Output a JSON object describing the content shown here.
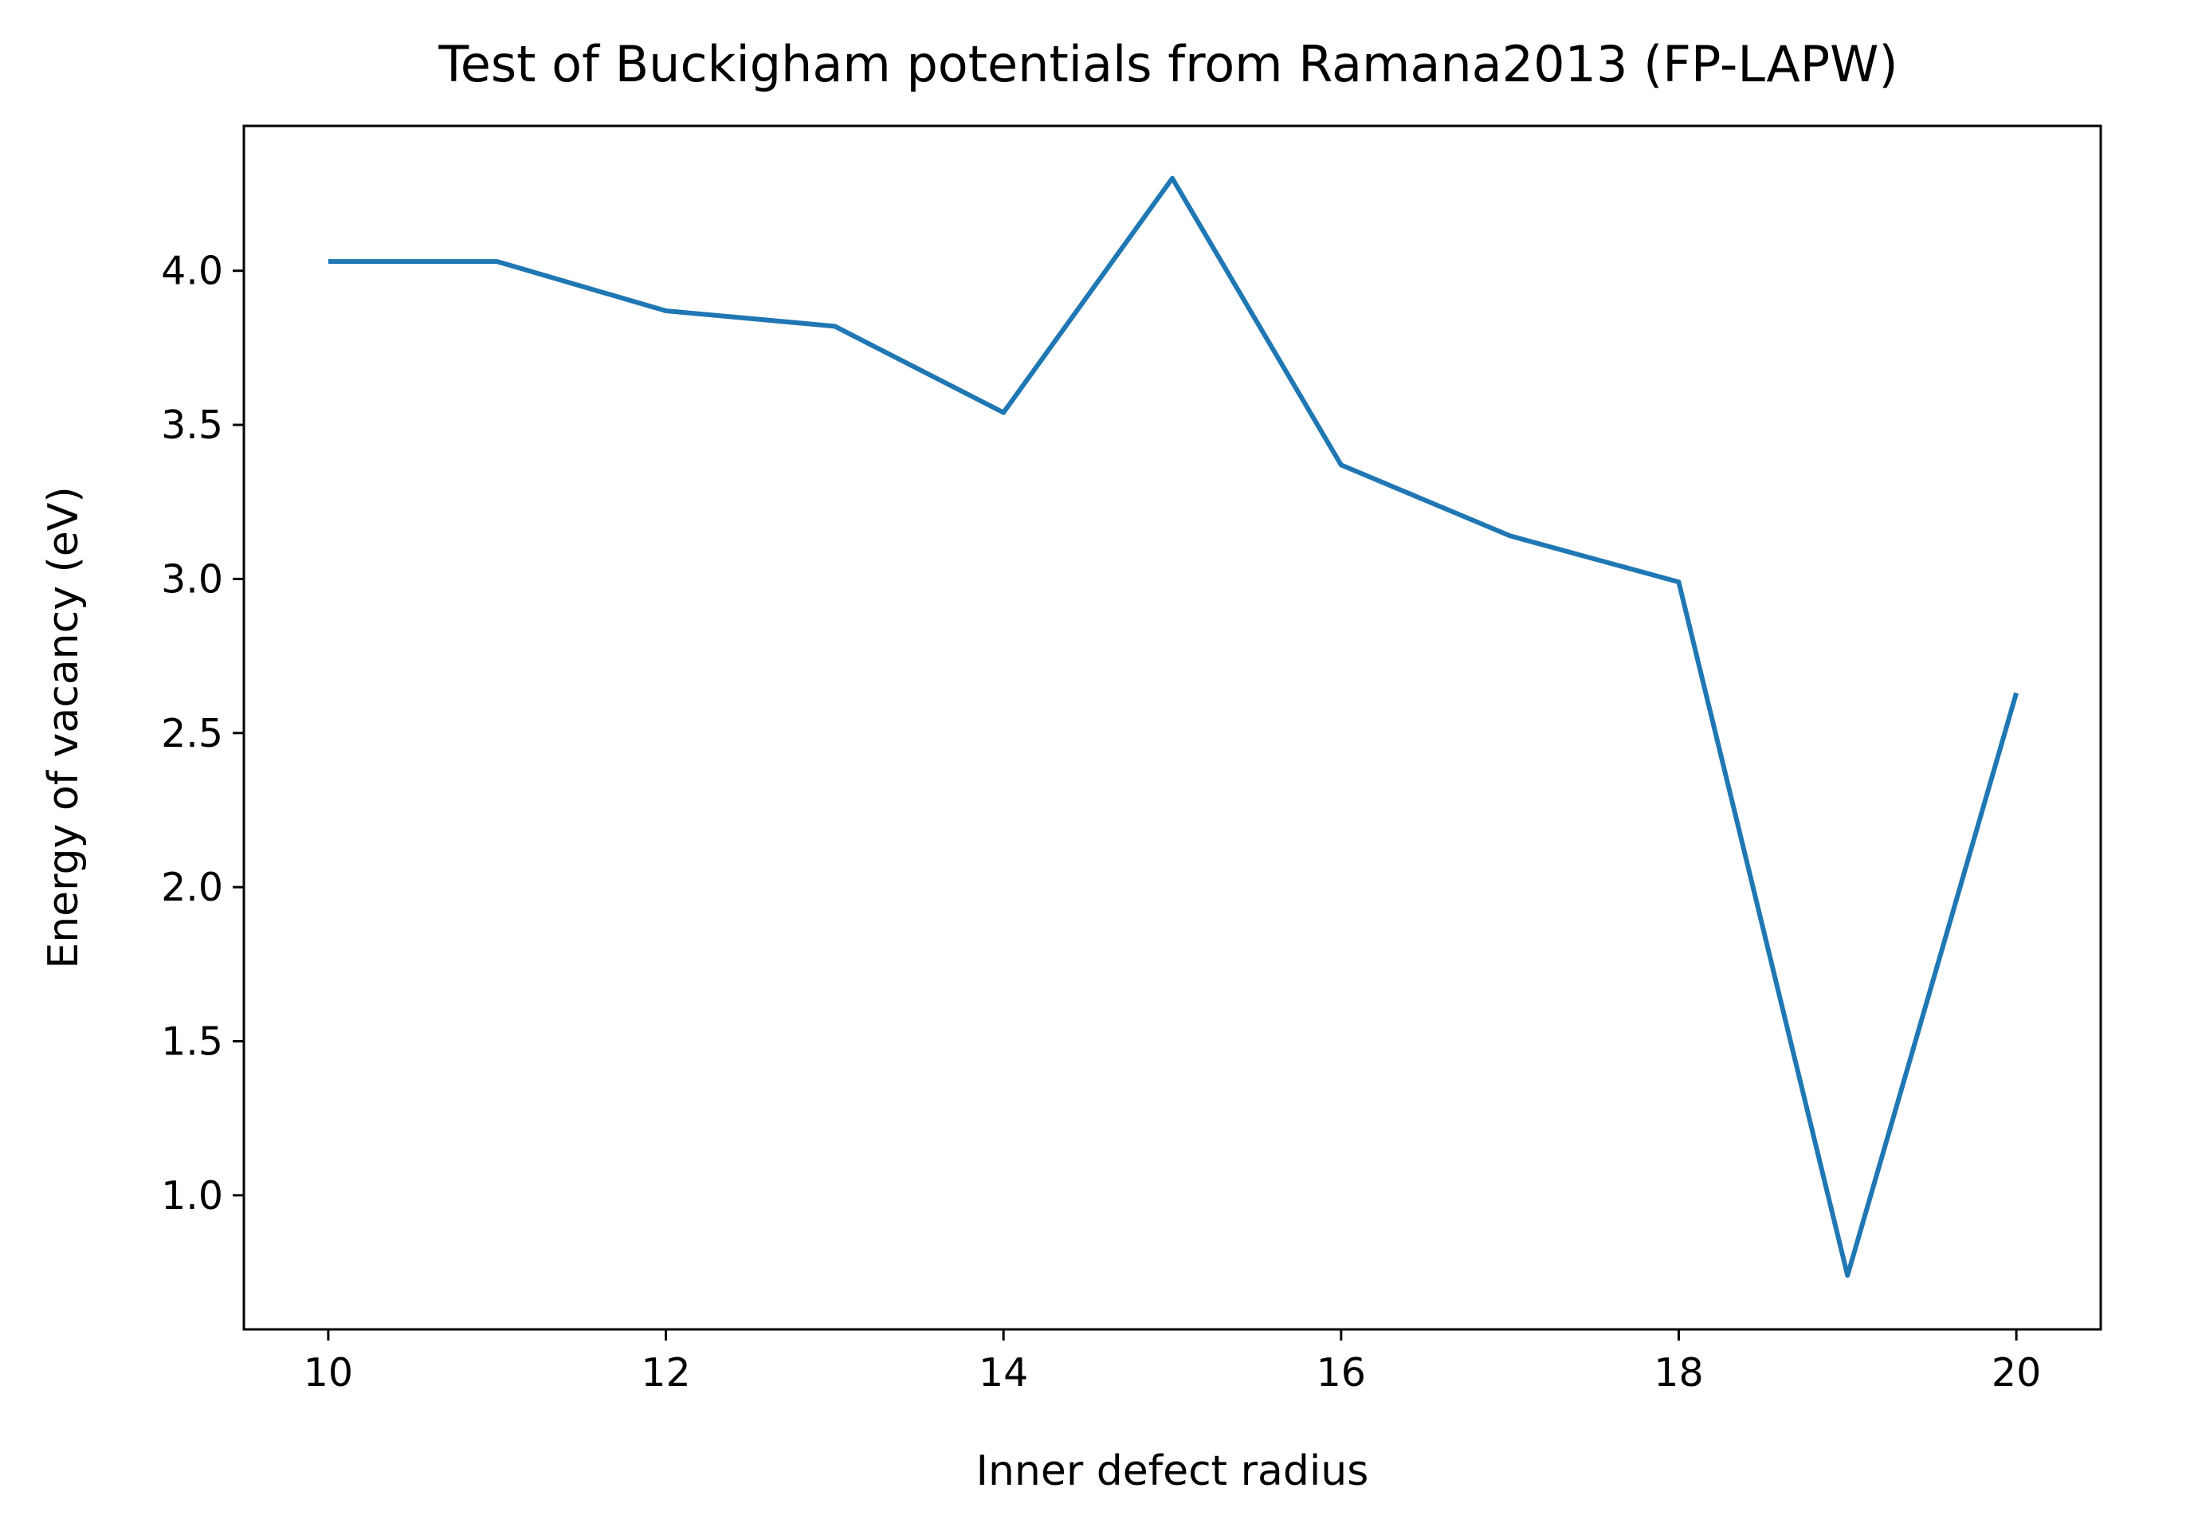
{
  "chart_data": {
    "type": "line",
    "title": "Test of Buckigham potentials from Ramana2013 (FP-LAPW)",
    "xlabel": "Inner defect radius",
    "ylabel": "Energy of vacancy (eV)",
    "xlim": [
      9.5,
      20.5
    ],
    "ylim": [
      0.565,
      4.47
    ],
    "x_ticks": [
      10,
      12,
      14,
      16,
      18,
      20
    ],
    "y_ticks": [
      1.0,
      1.5,
      2.0,
      2.5,
      3.0,
      3.5,
      4.0
    ],
    "x_tick_labels": [
      "10",
      "12",
      "14",
      "16",
      "18",
      "20"
    ],
    "y_tick_labels": [
      "1.0",
      "1.5",
      "2.0",
      "2.5",
      "3.0",
      "3.5",
      "4.0"
    ],
    "grid": false,
    "legend": false,
    "series": [
      {
        "color": "#1f77b4",
        "x": [
          10,
          11,
          12,
          13,
          14,
          15,
          16,
          17,
          18,
          19,
          20
        ],
        "y": [
          4.03,
          4.03,
          3.87,
          3.82,
          3.54,
          4.3,
          3.37,
          3.14,
          2.99,
          0.74,
          2.63
        ]
      }
    ]
  }
}
